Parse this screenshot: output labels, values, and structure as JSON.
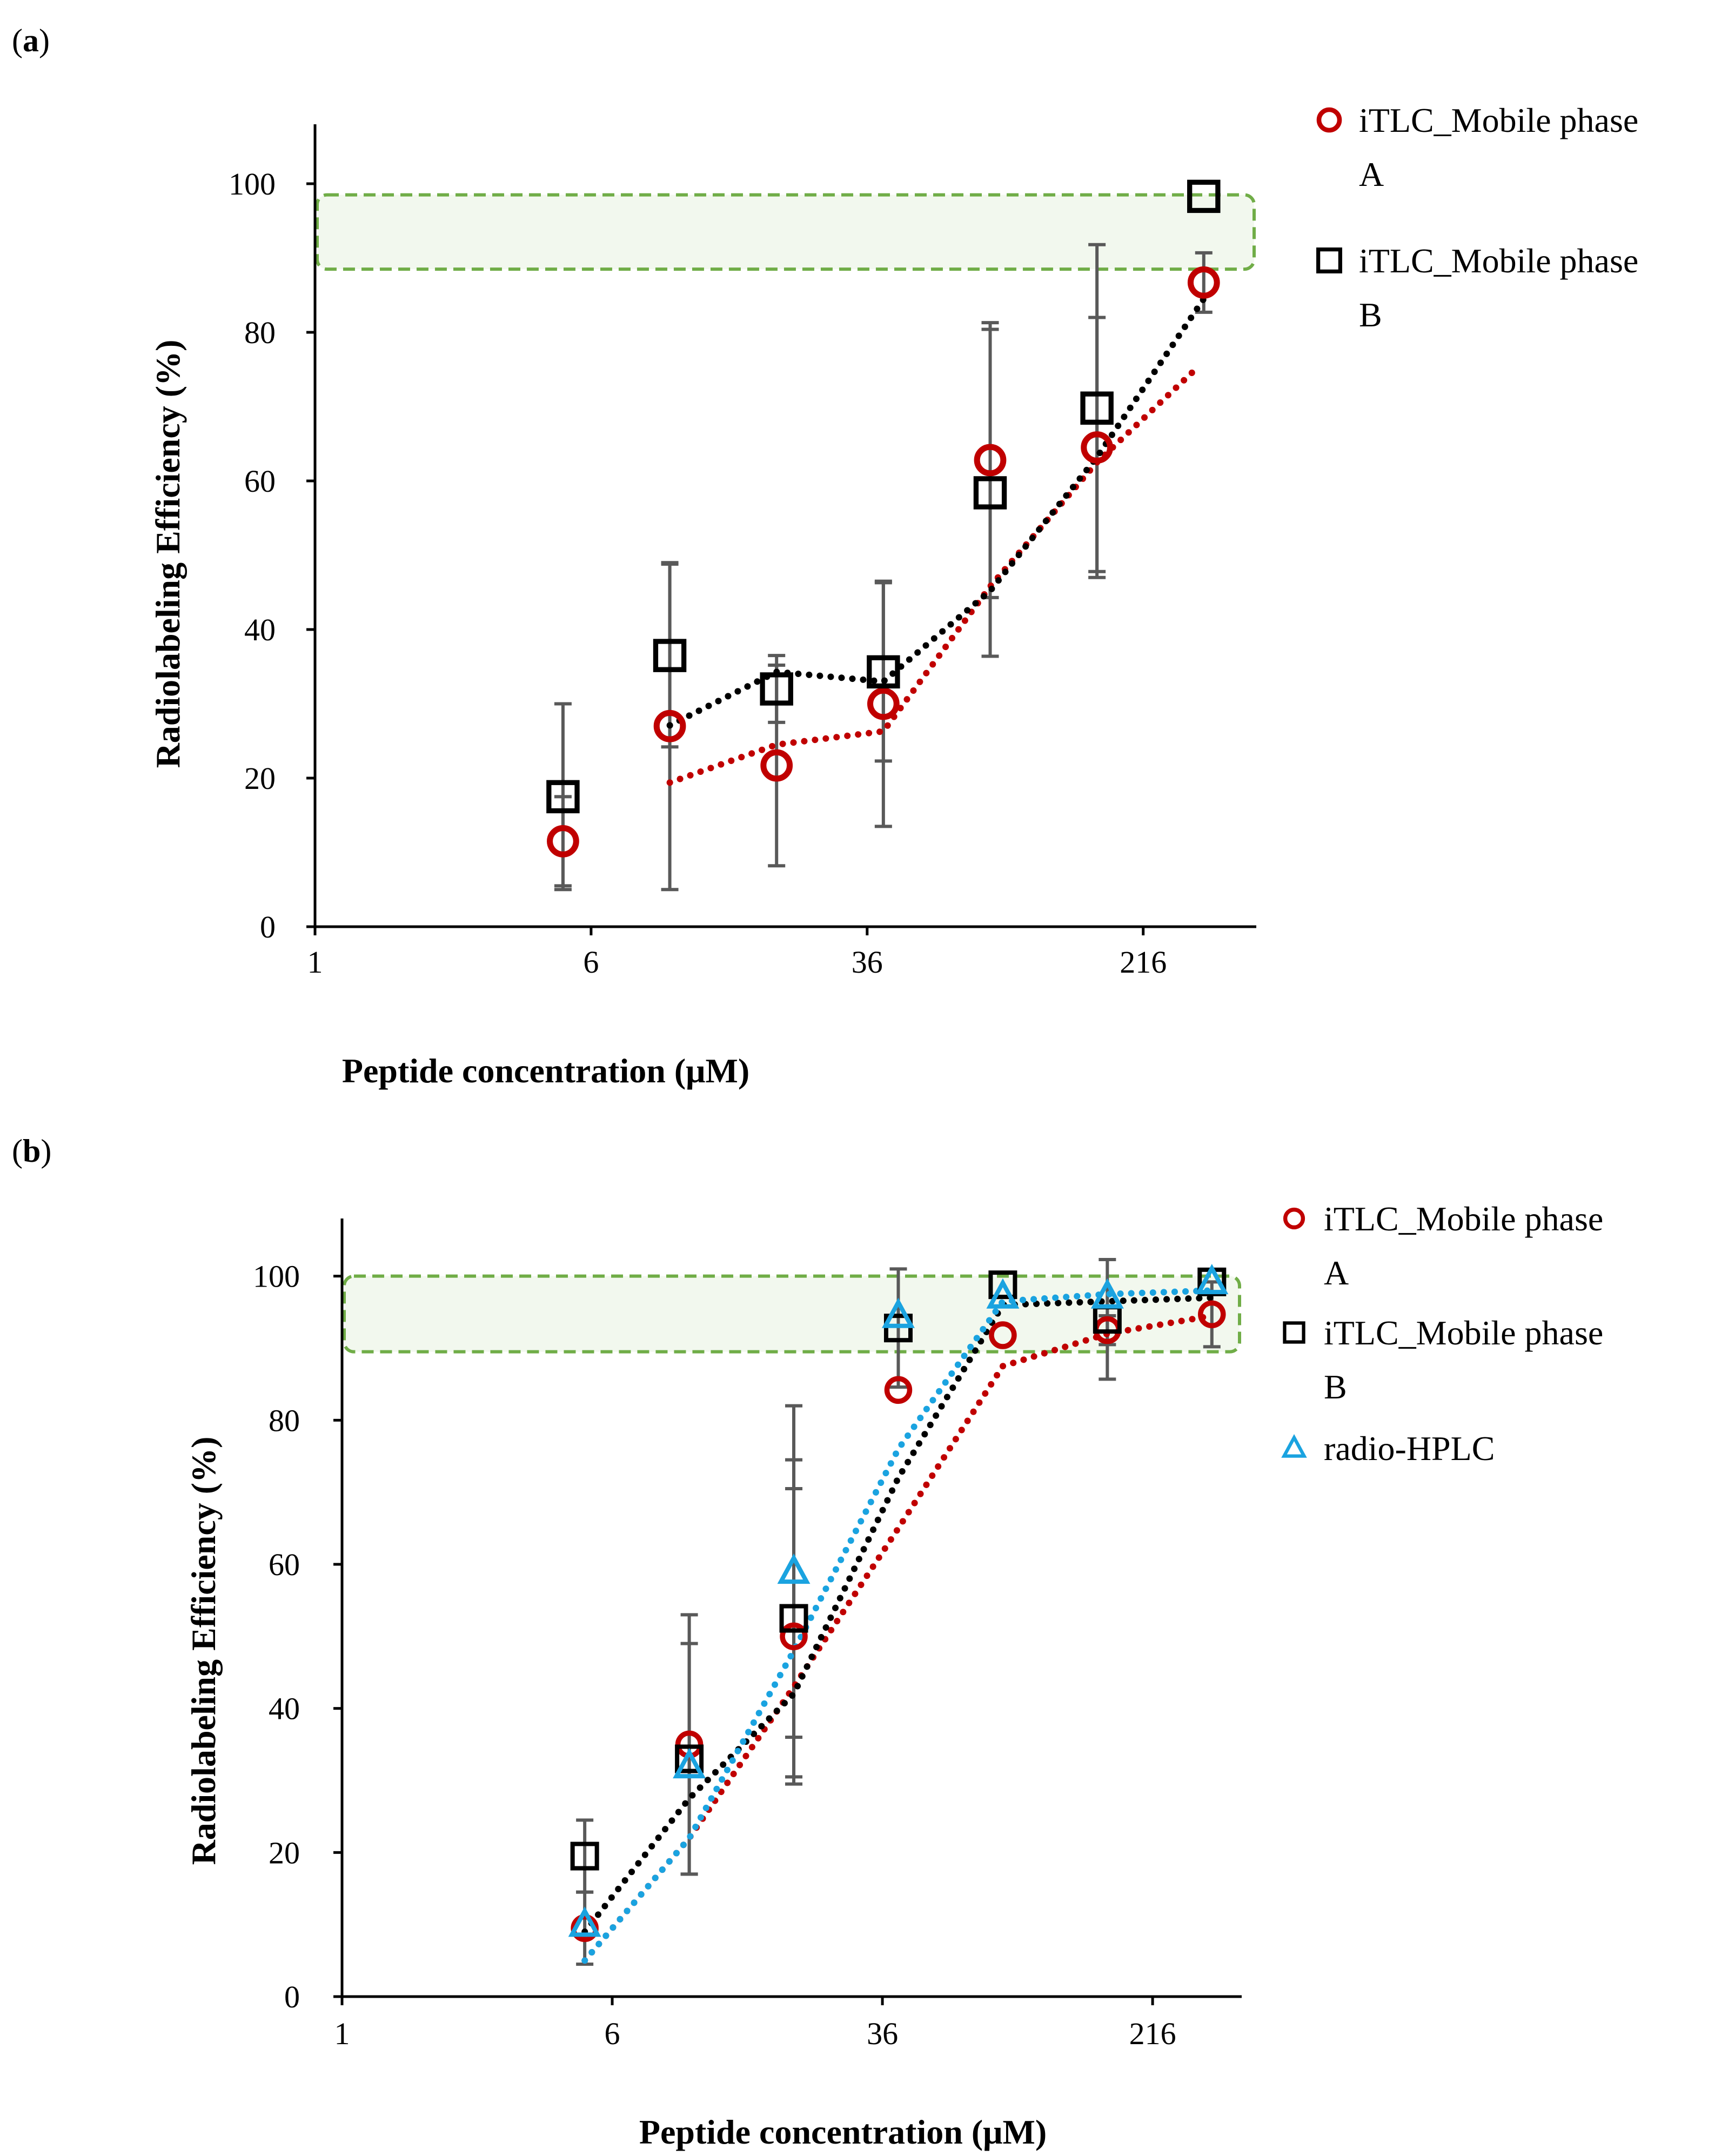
{
  "chart_data": [
    {
      "panel_label": "a",
      "type": "scatter",
      "xscale": "log",
      "xlabel": "Peptide concentration (μM)",
      "ylabel": "Radiolabeling Efficiency (%)",
      "xticks": [
        1,
        6,
        36,
        216
      ],
      "xlim": [
        1,
        450
      ],
      "yticks": [
        0,
        20,
        40,
        60,
        80,
        100
      ],
      "ylim": [
        0,
        108
      ],
      "target_band": [
        88.5,
        98.5
      ],
      "series": [
        {
          "name": "iTLC_Mobile phase A",
          "legend_line1": "iTLC_Mobile phase",
          "legend_line2": "A",
          "marker": "circle",
          "color": "#c00000",
          "x": [
            5,
            10,
            20,
            40,
            80,
            160,
            320
          ],
          "y": [
            11.5,
            27,
            21.7,
            30,
            62.8,
            64.5,
            86.7
          ],
          "err": [
            6,
            22,
            13.5,
            16.5,
            18.5,
            17.5,
            4
          ],
          "trend": [
            [
              10,
              19.4
            ],
            [
              20,
              24.5
            ],
            [
              40,
              26.3
            ],
            [
              80,
              45.8
            ],
            [
              160,
              62.5
            ],
            [
              300,
              74.8
            ]
          ]
        },
        {
          "name": "iTLC_Mobile phase B",
          "legend_line1": "iTLC_Mobile phase",
          "legend_line2": "B",
          "marker": "square",
          "color": "#000000",
          "x": [
            5,
            10,
            20,
            40,
            80,
            160,
            320
          ],
          "y": [
            17.5,
            36.5,
            32,
            34.3,
            58.4,
            69.8,
            98.3
          ],
          "err": [
            12.5,
            12.3,
            4.5,
            12,
            22,
            22,
            0
          ],
          "trend": [
            [
              10,
              27.1
            ],
            [
              20,
              34.3
            ],
            [
              40,
              33
            ],
            [
              80,
              45.2
            ],
            [
              160,
              63.2
            ],
            [
              320,
              84.5
            ]
          ]
        }
      ]
    },
    {
      "panel_label": "b",
      "type": "scatter",
      "xscale": "log",
      "xlabel": "Peptide concentration (μM)",
      "ylabel": "Radiolabeling Efficiency (%)",
      "xticks": [
        1,
        6,
        36,
        216
      ],
      "xlim": [
        1,
        390
      ],
      "yticks": [
        0,
        20,
        40,
        60,
        80,
        100
      ],
      "ylim": [
        0,
        108
      ],
      "target_band": [
        89.5,
        100
      ],
      "series": [
        {
          "name": "iTLC_Mobile phase A",
          "legend_line1": "iTLC_Mobile phase",
          "legend_line2": "A",
          "marker": "circle",
          "color": "#c00000",
          "x": [
            5,
            10,
            20,
            40,
            80,
            160,
            320
          ],
          "y": [
            9.5,
            35,
            50,
            84.2,
            91.8,
            92.5,
            94.7
          ],
          "err": [
            5,
            18,
            20.5,
            0,
            0,
            2,
            4.5
          ],
          "trend": [
            [
              5,
              5
            ],
            [
              10,
              22
            ],
            [
              20,
              43
            ],
            [
              40,
              65
            ],
            [
              80,
              87.5
            ],
            [
              160,
              92
            ],
            [
              320,
              94.5
            ]
          ]
        },
        {
          "name": "iTLC_Mobile phase B",
          "legend_line1": "iTLC_Mobile phase",
          "legend_line2": "B",
          "marker": "square",
          "color": "#000000",
          "x": [
            5,
            10,
            20,
            40,
            80,
            160,
            320
          ],
          "y": [
            19.5,
            33,
            52.5,
            92.8,
            98.8,
            94,
            99.2
          ],
          "err": [
            5,
            16,
            22,
            8.2,
            0,
            8.3,
            0
          ],
          "trend": [
            [
              5,
              9
            ],
            [
              10,
              27.5
            ],
            [
              20,
              42
            ],
            [
              40,
              72
            ],
            [
              80,
              96
            ],
            [
              160,
              96.5
            ],
            [
              320,
              97
            ]
          ]
        },
        {
          "name": "radio-HPLC",
          "legend_line1": "radio-HPLC",
          "legend_line2": "",
          "marker": "triangle",
          "color": "#1aa3e0",
          "x": [
            5,
            10,
            20,
            40,
            80,
            160,
            320
          ],
          "y": [
            10,
            32,
            59,
            94.5,
            97.2,
            97.2,
            99.2
          ],
          "err": [
            0,
            0,
            23,
            0,
            0,
            0,
            0
          ],
          "trend": [
            [
              5,
              5
            ],
            [
              10,
              22
            ],
            [
              20,
              48
            ],
            [
              40,
              76
            ],
            [
              80,
              96.5
            ],
            [
              160,
              97.5
            ],
            [
              320,
              98
            ]
          ]
        }
      ]
    }
  ]
}
